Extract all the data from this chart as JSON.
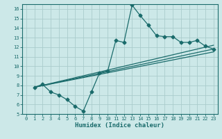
{
  "background_color": "#cce8e8",
  "grid_color": "#aacccc",
  "line_color": "#1a6b6b",
  "xlabel": "Humidex (Indice chaleur)",
  "xlim": [
    -0.5,
    23.5
  ],
  "ylim": [
    5,
    16.5
  ],
  "xticks": [
    0,
    1,
    2,
    3,
    4,
    5,
    6,
    7,
    8,
    9,
    10,
    11,
    12,
    13,
    14,
    15,
    16,
    17,
    18,
    19,
    20,
    21,
    22,
    23
  ],
  "yticks": [
    5,
    6,
    7,
    8,
    9,
    10,
    11,
    12,
    13,
    14,
    15,
    16
  ],
  "line1_x": [
    1,
    2,
    3,
    4,
    5,
    6,
    7,
    8,
    9,
    10,
    11,
    12,
    13,
    14,
    15,
    16,
    17,
    18,
    19,
    20,
    21,
    22,
    23
  ],
  "line1_y": [
    7.8,
    8.1,
    7.3,
    7.0,
    6.5,
    5.8,
    5.3,
    7.3,
    9.3,
    9.5,
    12.7,
    12.5,
    16.4,
    15.3,
    14.3,
    13.2,
    13.1,
    13.1,
    12.5,
    12.5,
    12.7,
    12.1,
    11.8
  ],
  "line2_x": [
    1,
    23
  ],
  "line2_y": [
    7.8,
    11.8
  ],
  "line3_x": [
    1,
    23
  ],
  "line3_y": [
    7.8,
    12.2
  ],
  "line4_x": [
    1,
    23
  ],
  "line4_y": [
    7.8,
    11.5
  ]
}
